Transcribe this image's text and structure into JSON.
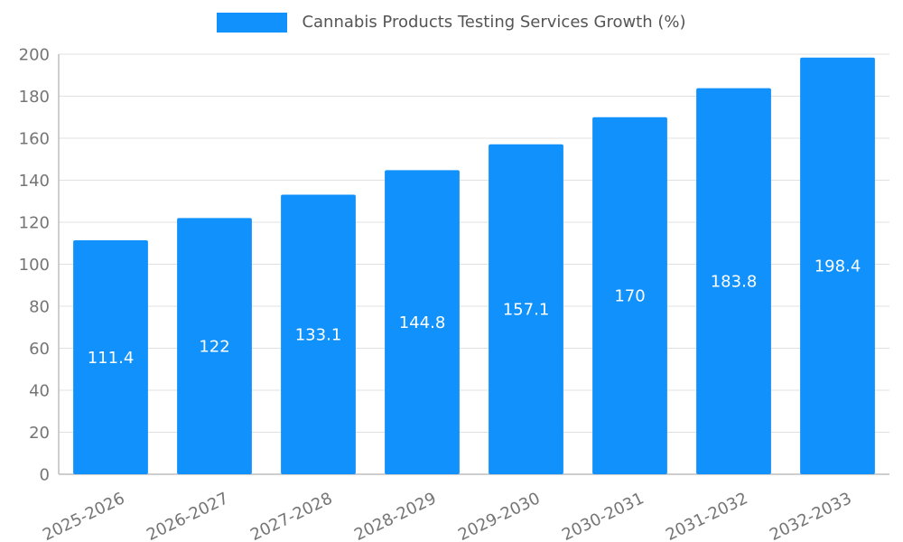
{
  "chart_data": {
    "type": "bar",
    "title": "Cannabis Products Testing Services Growth (%)",
    "categories": [
      "2025-2026",
      "2026-2027",
      "2027-2028",
      "2028-2029",
      "2029-2030",
      "2030-2031",
      "2031-2032",
      "2032-2033"
    ],
    "values": [
      111.4,
      122,
      133.1,
      144.8,
      157.1,
      170,
      183.8,
      198.4
    ],
    "xlabel": "",
    "ylabel": "",
    "ylim": [
      0,
      200
    ],
    "ytick_step": 20,
    "ytick_labels": [
      "0",
      "20",
      "40",
      "60",
      "80",
      "100",
      "120",
      "140",
      "160",
      "180",
      "200"
    ],
    "grid": true,
    "legend_position": "top",
    "bar_color": "#1191fb",
    "bar_label_color": "#ffffff",
    "axis_text_color": "#757575",
    "title_color": "#555555",
    "grid_color": "#e0e0e0",
    "axis_line_color": "#bdbdbd"
  }
}
